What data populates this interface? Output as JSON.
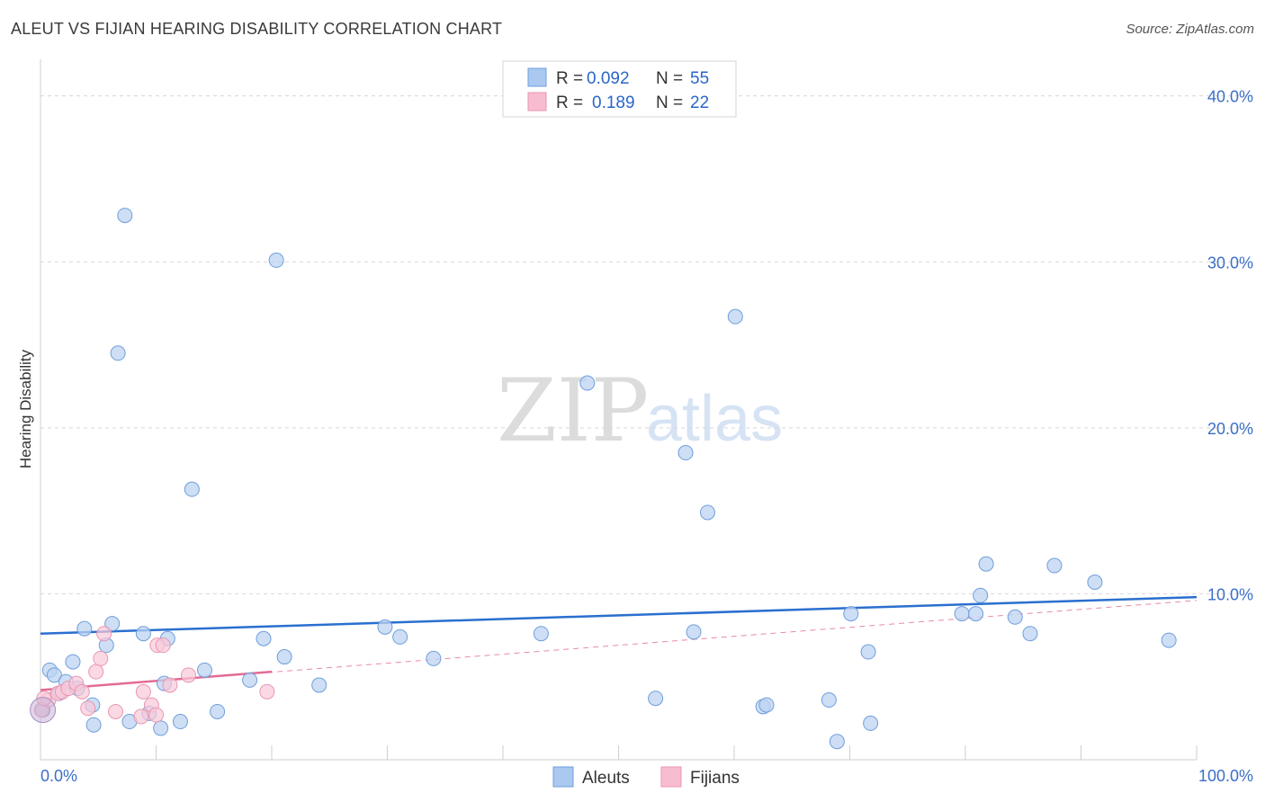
{
  "header": {
    "title": "ALEUT VS FIJIAN HEARING DISABILITY CORRELATION CHART",
    "source": "Source: ZipAtlas.com"
  },
  "watermark": {
    "zip": "ZIP",
    "atlas": "atlas"
  },
  "legend": {
    "r_label": "R =",
    "n_label": "N =",
    "rows": [
      {
        "r": "0.092",
        "n": "55",
        "color": "#aac8f0"
      },
      {
        "r": "0.189",
        "n": "22",
        "color": "#f8bcd0"
      }
    ]
  },
  "colors": {
    "aleut_fill": "#bcd3f2",
    "aleut_stroke": "#6f9fdc",
    "aleut_line": "#2a6fcf",
    "fijian_fill": "#f9c9d8",
    "fijian_stroke": "#e996b3",
    "fijian_line": "#e36b93",
    "grid": "#d8d8d8",
    "tick_label": "#3b6fc7"
  },
  "chart_data": {
    "type": "scatter",
    "title": "ALEUT VS FIJIAN HEARING DISABILITY CORRELATION CHART",
    "xlabel": "",
    "ylabel": "Hearing Disability",
    "xlim": [
      0,
      100
    ],
    "ylim": [
      0,
      41.5
    ],
    "x_tick_labels": [
      "0.0%",
      "100.0%"
    ],
    "y_ticks": [
      10,
      20,
      30,
      40
    ],
    "y_tick_labels": [
      "10.0%",
      "20.0%",
      "30.0%",
      "40.0%"
    ],
    "grid": "horizontal dashed",
    "legend_placement": "top-center",
    "series": [
      {
        "name": "Aleuts",
        "r": 0.092,
        "n": 55,
        "trend": {
          "x": [
            0,
            100
          ],
          "y": [
            7.6,
            9.8
          ],
          "style": "solid"
        },
        "points": [
          [
            0.2,
            3.0
          ],
          [
            0.8,
            5.4
          ],
          [
            1.2,
            5.1
          ],
          [
            2.2,
            4.7
          ],
          [
            2.8,
            5.9
          ],
          [
            3.2,
            4.3
          ],
          [
            3.8,
            7.9
          ],
          [
            4.5,
            3.3
          ],
          [
            4.6,
            2.1
          ],
          [
            5.7,
            6.9
          ],
          [
            6.2,
            8.2
          ],
          [
            6.7,
            24.5
          ],
          [
            7.3,
            32.8
          ],
          [
            7.7,
            2.3
          ],
          [
            8.9,
            7.6
          ],
          [
            9.4,
            2.8
          ],
          [
            10.4,
            1.9
          ],
          [
            10.7,
            4.6
          ],
          [
            11.0,
            7.3
          ],
          [
            12.1,
            2.3
          ],
          [
            13.1,
            16.3
          ],
          [
            14.2,
            5.4
          ],
          [
            15.3,
            2.9
          ],
          [
            18.1,
            4.8
          ],
          [
            19.3,
            7.3
          ],
          [
            20.4,
            30.1
          ],
          [
            21.1,
            6.2
          ],
          [
            24.1,
            4.5
          ],
          [
            29.8,
            8.0
          ],
          [
            31.1,
            7.4
          ],
          [
            34.0,
            6.1
          ],
          [
            43.3,
            7.6
          ],
          [
            47.3,
            22.7
          ],
          [
            53.2,
            3.7
          ],
          [
            55.8,
            18.5
          ],
          [
            56.5,
            7.7
          ],
          [
            57.7,
            14.9
          ],
          [
            60.1,
            26.7
          ],
          [
            62.5,
            3.2
          ],
          [
            62.8,
            3.3
          ],
          [
            68.2,
            3.6
          ],
          [
            68.9,
            1.1
          ],
          [
            70.1,
            8.8
          ],
          [
            71.6,
            6.5
          ],
          [
            71.8,
            2.2
          ],
          [
            79.7,
            8.8
          ],
          [
            80.9,
            8.8
          ],
          [
            81.3,
            9.9
          ],
          [
            81.8,
            11.8
          ],
          [
            84.3,
            8.6
          ],
          [
            85.6,
            7.6
          ],
          [
            87.7,
            11.7
          ],
          [
            91.2,
            10.7
          ],
          [
            97.6,
            7.2
          ],
          [
            1.6,
            4.0
          ]
        ]
      },
      {
        "name": "Fijians",
        "r": 0.189,
        "n": 22,
        "trend": {
          "x": [
            0,
            20
          ],
          "y": [
            4.2,
            5.3
          ],
          "style": "solid",
          "extended_x": [
            0,
            100
          ],
          "extended_y": [
            4.2,
            9.6
          ],
          "extended_style": "dashed"
        },
        "points": [
          [
            0.1,
            3.0
          ],
          [
            0.7,
            3.6
          ],
          [
            1.5,
            4.0
          ],
          [
            1.9,
            4.1
          ],
          [
            2.4,
            4.3
          ],
          [
            3.1,
            4.6
          ],
          [
            3.6,
            4.1
          ],
          [
            4.1,
            3.1
          ],
          [
            4.8,
            5.3
          ],
          [
            5.2,
            6.1
          ],
          [
            5.5,
            7.6
          ],
          [
            6.5,
            2.9
          ],
          [
            8.7,
            2.6
          ],
          [
            8.9,
            4.1
          ],
          [
            9.6,
            3.3
          ],
          [
            10.0,
            2.7
          ],
          [
            10.1,
            6.9
          ],
          [
            10.6,
            6.9
          ],
          [
            11.2,
            4.5
          ],
          [
            12.8,
            5.1
          ],
          [
            19.6,
            4.1
          ],
          [
            0.3,
            3.7
          ]
        ]
      }
    ]
  },
  "bottom_legend": [
    {
      "label": "Aleuts"
    },
    {
      "label": "Fijians"
    }
  ]
}
